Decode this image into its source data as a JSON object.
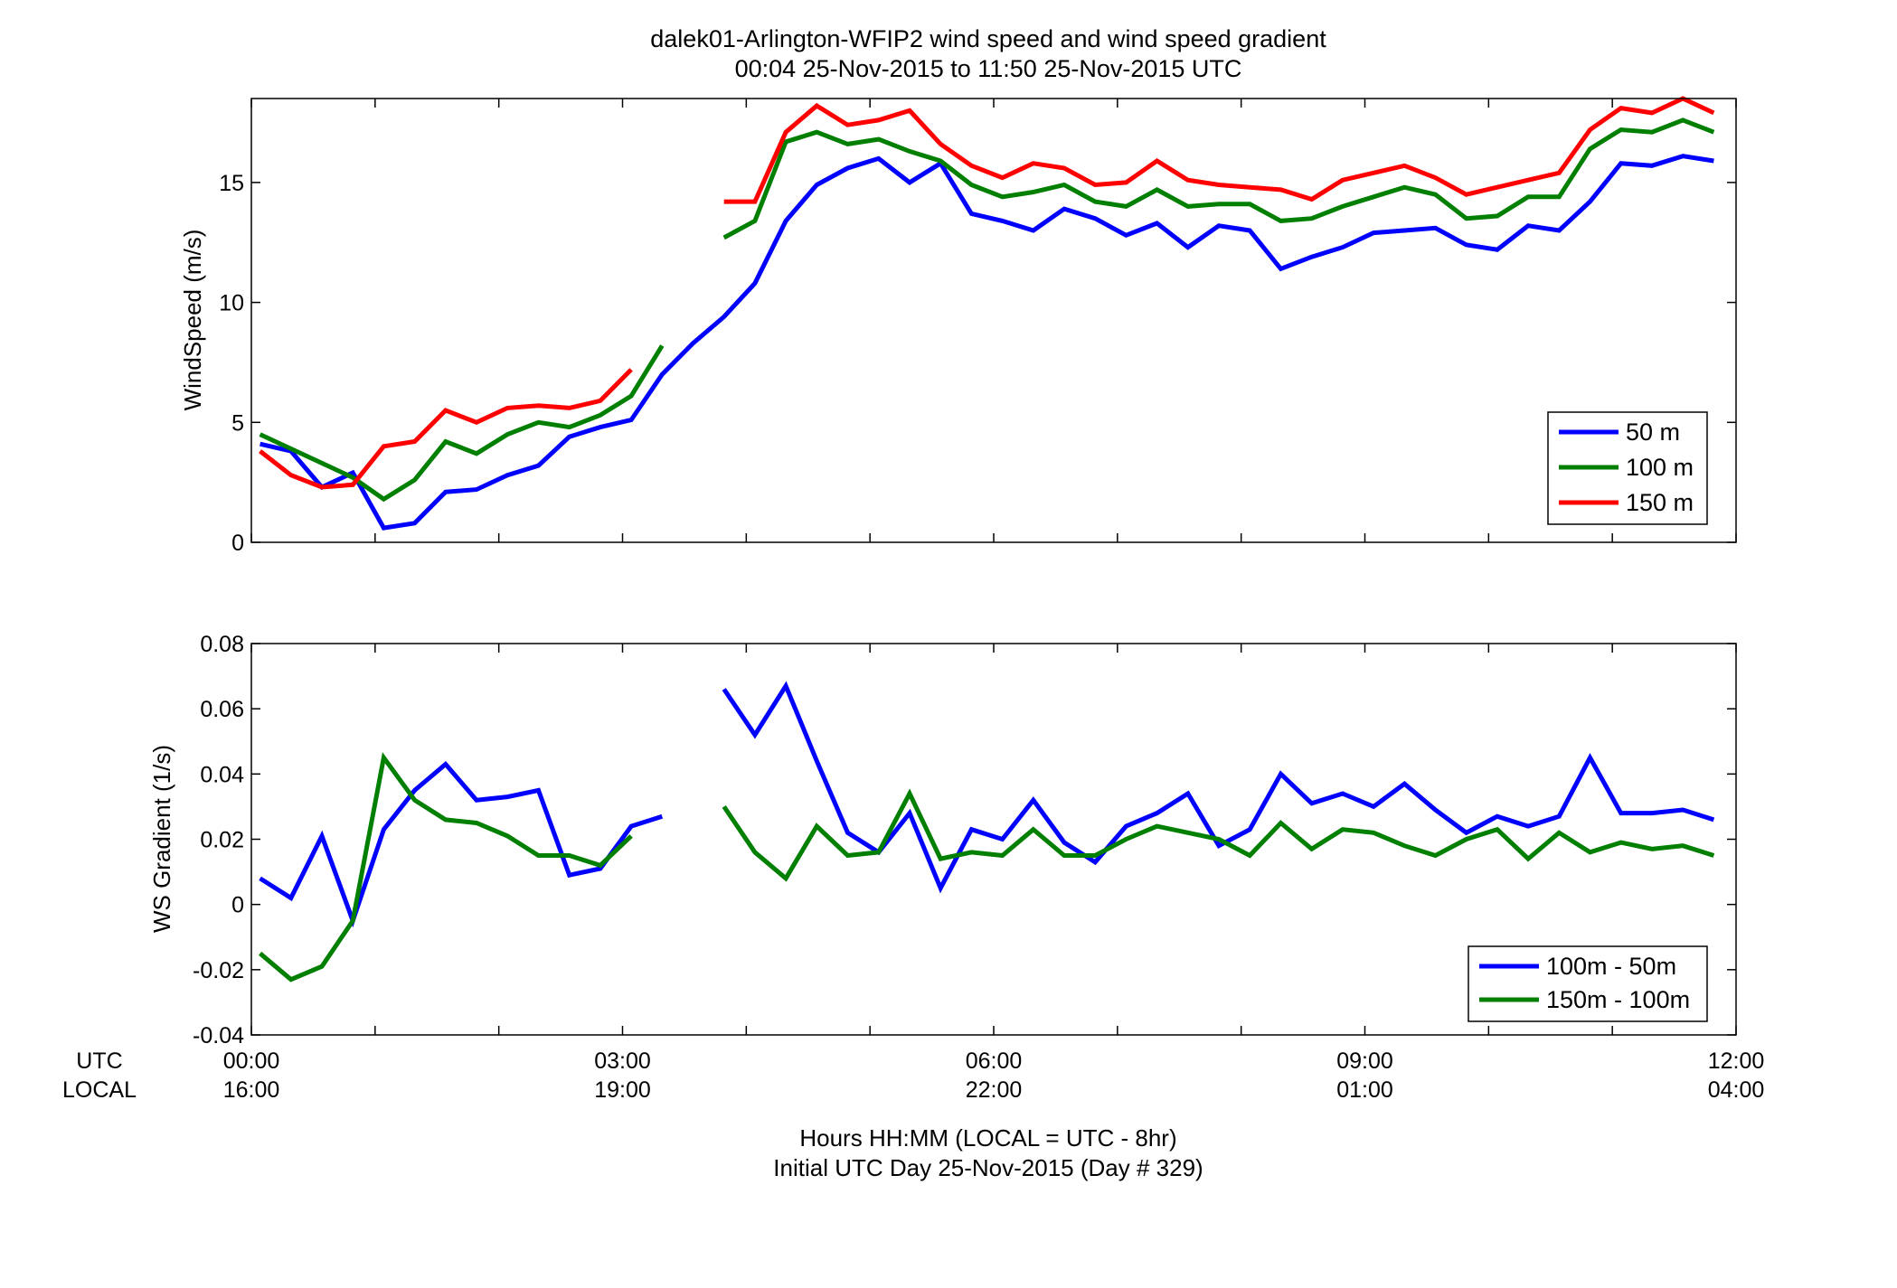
{
  "figure": {
    "title_line1": "dalek01-Arlington-WFIP2  wind speed and wind speed gradient",
    "title_line2": "00:04 25-Nov-2015 to 11:50 25-Nov-2015  UTC",
    "row_label_utc": "UTC",
    "row_label_local": "LOCAL",
    "xlabel_line1": "Hours HH:MM  (LOCAL = UTC - 8hr)",
    "xlabel_line2": "Initial UTC Day 25-Nov-2015 (Day # 329)",
    "x_ticks": [
      0,
      3,
      6,
      9,
      12
    ],
    "x_ticks_utc": [
      "00:00",
      "03:00",
      "06:00",
      "09:00",
      "12:00"
    ],
    "x_ticks_local": [
      "16:00",
      "19:00",
      "22:00",
      "01:00",
      "04:00"
    ]
  },
  "chart_data": [
    {
      "type": "line",
      "ylabel": "WindSpeed (m/s)",
      "xlim": [
        0,
        12
      ],
      "ylim": [
        0,
        18.5
      ],
      "y_ticks": [
        0,
        5,
        10,
        15
      ],
      "y_tick_labels": [
        "0",
        "5",
        "10",
        "15"
      ],
      "grid": false,
      "legend": "bottom-right",
      "x": [
        0.07,
        0.32,
        0.57,
        0.82,
        1.07,
        1.32,
        1.57,
        1.82,
        2.07,
        2.32,
        2.57,
        2.82,
        3.07,
        3.32,
        3.57,
        3.82,
        4.07,
        4.32,
        4.57,
        4.82,
        5.07,
        5.32,
        5.57,
        5.82,
        6.07,
        6.32,
        6.57,
        6.82,
        7.07,
        7.32,
        7.57,
        7.82,
        8.07,
        8.32,
        8.57,
        8.82,
        9.07,
        9.32,
        9.57,
        9.82,
        10.07,
        10.32,
        10.57,
        10.82,
        11.07,
        11.32,
        11.57,
        11.82
      ],
      "series": [
        {
          "name": "50 m",
          "color": "#0000ff",
          "values": [
            4.1,
            3.8,
            2.3,
            2.9,
            0.6,
            0.8,
            2.1,
            2.2,
            2.8,
            3.2,
            4.4,
            4.8,
            5.1,
            7.0,
            8.3,
            9.4,
            10.8,
            13.4,
            14.9,
            15.6,
            16.0,
            15.0,
            15.8,
            13.7,
            13.4,
            13.0,
            13.9,
            13.5,
            12.8,
            13.3,
            12.3,
            13.2,
            13.0,
            11.4,
            11.9,
            12.3,
            12.9,
            13.0,
            13.1,
            12.4,
            12.2,
            13.2,
            13.0,
            14.2,
            15.8,
            15.7,
            16.1,
            15.9
          ]
        },
        {
          "name": "100 m",
          "color": "#007f00",
          "values": [
            4.5,
            3.9,
            3.3,
            2.7,
            1.8,
            2.6,
            4.2,
            3.7,
            4.5,
            5.0,
            4.8,
            5.3,
            6.1,
            8.2,
            null,
            12.7,
            13.4,
            16.7,
            17.1,
            16.6,
            16.8,
            16.3,
            15.9,
            14.9,
            14.4,
            14.6,
            14.9,
            14.2,
            14.0,
            14.7,
            14.0,
            14.1,
            14.1,
            13.4,
            13.5,
            14.0,
            14.4,
            14.8,
            14.5,
            13.5,
            13.6,
            14.4,
            14.4,
            16.4,
            17.2,
            17.1,
            17.6,
            17.1
          ]
        },
        {
          "name": "150 m",
          "color": "#ff0000",
          "values": [
            3.8,
            2.8,
            2.3,
            2.4,
            4.0,
            4.2,
            5.5,
            5.0,
            5.6,
            5.7,
            5.6,
            5.9,
            7.2,
            null,
            null,
            14.2,
            14.2,
            17.1,
            18.2,
            17.4,
            17.6,
            18.0,
            16.6,
            15.7,
            15.2,
            15.8,
            15.6,
            14.9,
            15.0,
            15.9,
            15.1,
            14.9,
            14.8,
            14.7,
            14.3,
            15.1,
            15.4,
            15.7,
            15.2,
            14.5,
            14.8,
            15.1,
            15.4,
            17.2,
            18.1,
            17.9,
            18.5,
            17.9
          ]
        }
      ]
    },
    {
      "type": "line",
      "ylabel": "WS Gradient (1/s)",
      "xlim": [
        0,
        12
      ],
      "ylim": [
        -0.04,
        0.08
      ],
      "y_ticks": [
        -0.04,
        -0.02,
        0,
        0.02,
        0.04,
        0.06,
        0.08
      ],
      "y_tick_labels": [
        "-0.04",
        "-0.02",
        "0",
        "0.02",
        "0.04",
        "0.06",
        "0.08"
      ],
      "grid": false,
      "legend": "bottom-right",
      "x": [
        0.07,
        0.32,
        0.57,
        0.82,
        1.07,
        1.32,
        1.57,
        1.82,
        2.07,
        2.32,
        2.57,
        2.82,
        3.07,
        3.32,
        3.57,
        3.82,
        4.07,
        4.32,
        4.57,
        4.82,
        5.07,
        5.32,
        5.57,
        5.82,
        6.07,
        6.32,
        6.57,
        6.82,
        7.07,
        7.32,
        7.57,
        7.82,
        8.07,
        8.32,
        8.57,
        8.82,
        9.07,
        9.32,
        9.57,
        9.82,
        10.07,
        10.32,
        10.57,
        10.82,
        11.07,
        11.32,
        11.57,
        11.82
      ],
      "series": [
        {
          "name": "100m - 50m",
          "color": "#0000ff",
          "values": [
            0.008,
            0.002,
            0.021,
            -0.005,
            0.023,
            0.035,
            0.043,
            0.032,
            0.033,
            0.035,
            0.009,
            0.011,
            0.024,
            0.027,
            null,
            0.066,
            0.052,
            0.067,
            0.044,
            0.022,
            0.016,
            0.028,
            0.005,
            0.023,
            0.02,
            0.032,
            0.019,
            0.013,
            0.024,
            0.028,
            0.034,
            0.018,
            0.023,
            0.04,
            0.031,
            0.034,
            0.03,
            0.037,
            0.029,
            0.022,
            0.027,
            0.024,
            0.027,
            0.045,
            0.028,
            0.028,
            0.029,
            0.026
          ]
        },
        {
          "name": "150m - 100m",
          "color": "#007f00",
          "values": [
            -0.015,
            -0.023,
            -0.019,
            -0.005,
            0.045,
            0.032,
            0.026,
            0.025,
            0.021,
            0.015,
            0.015,
            0.012,
            0.021,
            null,
            null,
            0.03,
            0.016,
            0.008,
            0.024,
            0.015,
            0.016,
            0.034,
            0.014,
            0.016,
            0.015,
            0.023,
            0.015,
            0.015,
            0.02,
            0.024,
            0.022,
            0.02,
            0.015,
            0.025,
            0.017,
            0.023,
            0.022,
            0.018,
            0.015,
            0.02,
            0.023,
            0.014,
            0.022,
            0.016,
            0.019,
            0.017,
            0.018,
            0.015
          ]
        }
      ]
    }
  ]
}
